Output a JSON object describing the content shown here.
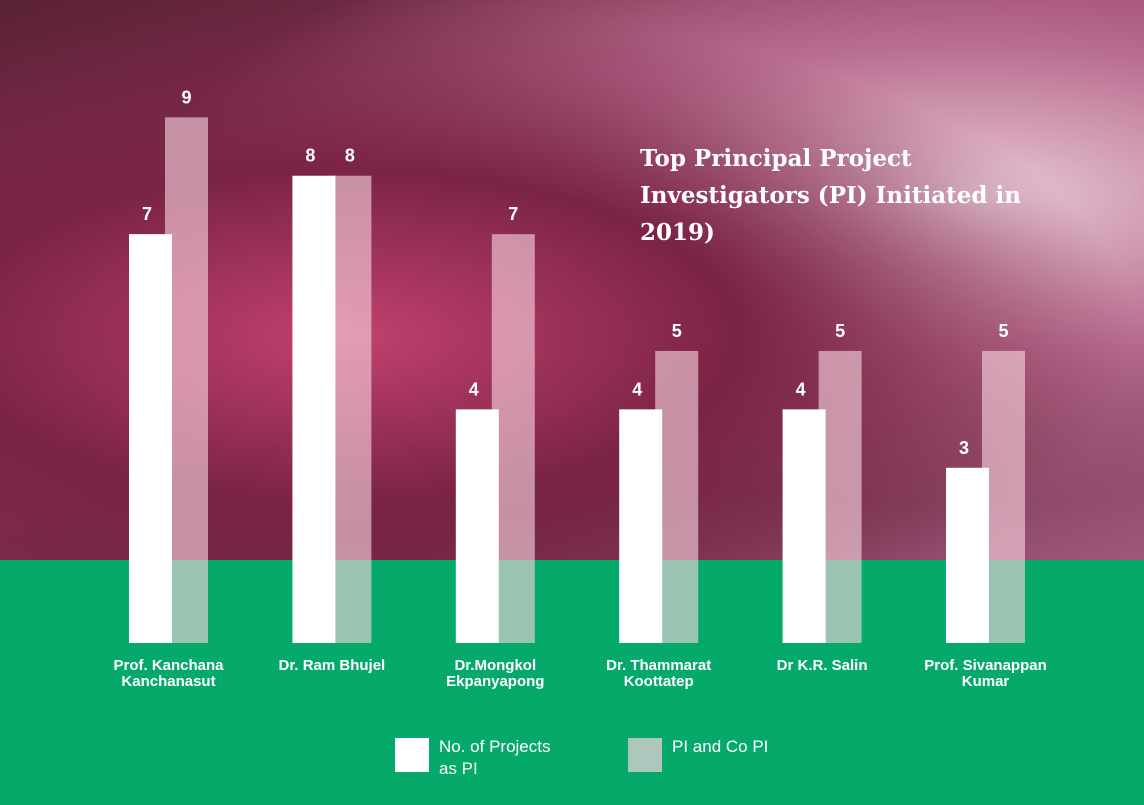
{
  "chart_data": {
    "type": "bar",
    "title": "Top Principal Project Investigators (PI) Initiated in 2019)",
    "categories": [
      "Prof. Kanchana\nKanchanasut",
      "Dr. Ram Bhujel",
      "Dr.Mongkol\nEkpanyapong",
      "Dr. Thammarat\nKoottatep",
      "Dr K.R. Salin",
      "Prof. Sivanappan\nKumar"
    ],
    "series": [
      {
        "name": "No. of Projects\nas PI",
        "color": "#ffffff",
        "values": [
          7,
          8,
          4,
          4,
          4,
          3
        ]
      },
      {
        "name": "PI and Co PI",
        "color": "#f7d3df",
        "values": [
          9,
          8,
          7,
          5,
          5,
          5
        ]
      }
    ],
    "ylim": [
      0,
      11
    ]
  }
}
